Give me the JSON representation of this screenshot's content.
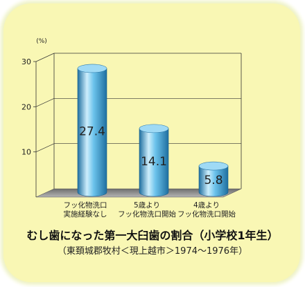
{
  "chart_data": {
    "type": "bar",
    "title": "むし歯になった第一大臼歯の割合（小学校1年生）",
    "subtitle": "（東頚城郡牧村＜現上越市＞1974〜1976年）",
    "ylabel": "(%)",
    "ylim": [
      0,
      30
    ],
    "yticks": [
      10,
      20,
      30
    ],
    "categories": [
      [
        "フッ化物洗口",
        "実施経験なし"
      ],
      [
        "5歳より",
        "フッ化物洗口開始"
      ],
      [
        "4歳より",
        "フッ化物洗口開始"
      ]
    ],
    "values": [
      27.4,
      14.1,
      5.8
    ],
    "data_labels": [
      "27.4",
      "14.1",
      "5.8"
    ],
    "grid": true,
    "bar_style": "cylinder",
    "colors": {
      "background": "#f9f7b4",
      "bar": "#5cb8e6",
      "bar_dark": "#1f6fa0",
      "bar_light": "#cdeefc",
      "floor": "#8c8c8c",
      "grid": "#333333"
    }
  }
}
